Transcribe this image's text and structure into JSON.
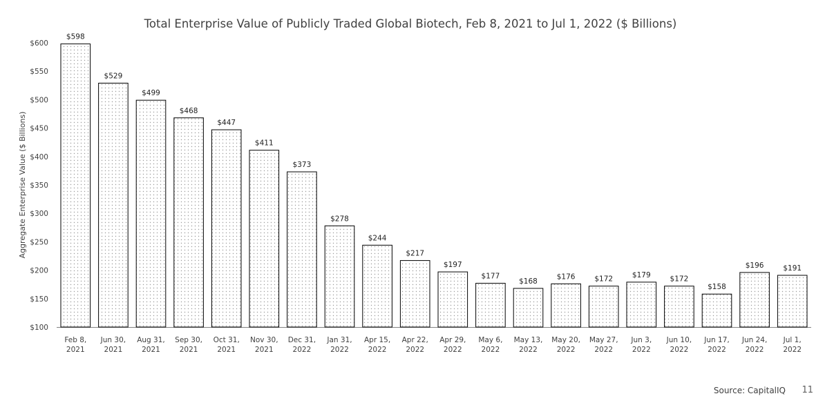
{
  "chart_data": {
    "type": "bar",
    "title": "Total Enterprise Value of Publicly Traded Global Biotech, Feb 8, 2021 to Jul 1, 2022 ($ Billions)",
    "ylabel": "Aggregate Enterprise Value ($ Billions)",
    "xlabel": "",
    "ylim": [
      100,
      600
    ],
    "yticks": [
      100,
      150,
      200,
      250,
      300,
      350,
      400,
      450,
      500,
      550,
      600
    ],
    "tick_prefix": "$",
    "value_prefix": "$",
    "grid": false,
    "bar_fill": "dotted",
    "categories": [
      [
        "Feb 8,",
        "2021"
      ],
      [
        "Jun 30,",
        "2021"
      ],
      [
        "Aug 31,",
        "2021"
      ],
      [
        "Sep 30,",
        "2021"
      ],
      [
        "Oct 31,",
        "2021"
      ],
      [
        "Nov 30,",
        "2021"
      ],
      [
        "Dec 31,",
        "2022"
      ],
      [
        "Jan 31,",
        "2022"
      ],
      [
        "Apr 15,",
        "2022"
      ],
      [
        "Apr 22,",
        "2022"
      ],
      [
        "Apr 29,",
        "2022"
      ],
      [
        "May 6,",
        "2022"
      ],
      [
        "May 13,",
        "2022"
      ],
      [
        "May 20,",
        "2022"
      ],
      [
        "May 27,",
        "2022"
      ],
      [
        "Jun 3,",
        "2022"
      ],
      [
        "Jun 10,",
        "2022"
      ],
      [
        "Jun 17,",
        "2022"
      ],
      [
        "Jun 24,",
        "2022"
      ],
      [
        "Jul 1,",
        "2022"
      ]
    ],
    "values": [
      598,
      529,
      499,
      468,
      447,
      411,
      373,
      278,
      244,
      217,
      197,
      177,
      168,
      176,
      172,
      179,
      172,
      158,
      196,
      191
    ],
    "colors": {
      "bar_edge": "#000000",
      "bar_dot": "#9a9a9a",
      "axis": "#808080",
      "text": "#404040"
    }
  },
  "footer": {
    "source": "Source: CapitalIQ",
    "page": "11"
  }
}
